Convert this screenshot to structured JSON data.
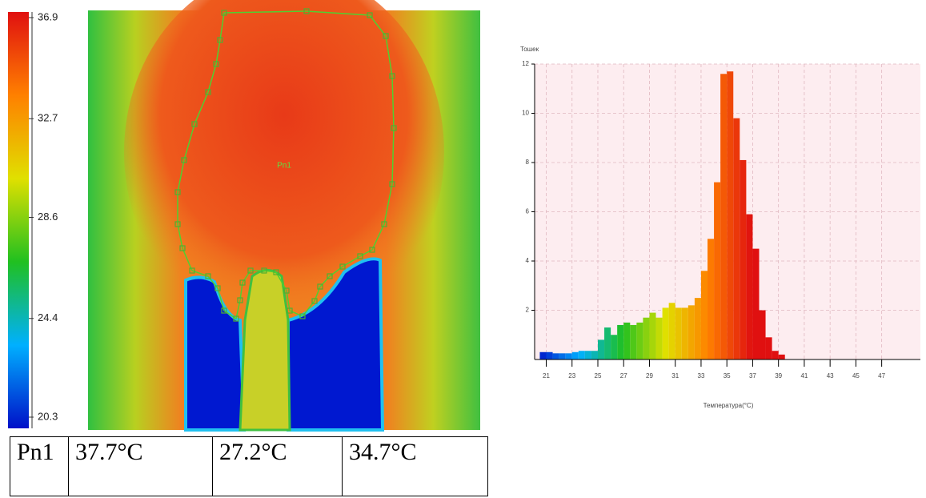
{
  "colorbar": {
    "lim": [
      20.3,
      36.9
    ],
    "ticks": [
      36.9,
      32.7,
      28.6,
      24.4,
      20.3
    ],
    "colormap": [
      "#0010c8",
      "#00b0ff",
      "#20c020",
      "#e0e000",
      "#ff8000",
      "#e01010"
    ]
  },
  "thermal_image": {
    "region_label": "Pn1"
  },
  "chart_data": {
    "type": "histogram",
    "ylabel": "Тошек",
    "xlabel": "Температура(°C)",
    "bins": [
      20.5,
      21,
      21.5,
      22,
      22.5,
      23,
      23.5,
      24,
      24.5,
      25,
      25.5,
      26,
      26.5,
      27,
      27.5,
      28,
      28.5,
      29,
      29.5,
      30,
      30.5,
      31,
      31.5,
      32,
      32.5,
      33,
      33.5,
      34,
      34.5,
      35,
      35.5,
      36,
      36.5,
      37,
      37.5,
      38,
      38.5,
      39,
      39.5
    ],
    "values": [
      0.3,
      0.3,
      0.25,
      0.25,
      0.25,
      0.3,
      0.35,
      0.35,
      0.35,
      0.8,
      1.3,
      1.0,
      1.4,
      1.5,
      1.4,
      1.5,
      1.7,
      1.9,
      1.7,
      2.1,
      2.3,
      2.1,
      2.1,
      2.2,
      2.5,
      3.6,
      4.9,
      7.2,
      11.6,
      11.7,
      9.8,
      8.1,
      5.9,
      4.5,
      2.0,
      0.9,
      0.35,
      0.2
    ],
    "xlim": [
      20.1,
      50
    ],
    "ylim": [
      0,
      12
    ],
    "xticks": [
      21,
      23,
      25,
      27,
      29,
      31,
      33,
      35,
      37,
      39,
      41,
      43,
      45,
      47
    ],
    "yticks": [
      2,
      4,
      6,
      8,
      10,
      12
    ],
    "grid": true,
    "background": "#fdedf0"
  },
  "table": {
    "rows": [
      [
        "Pn1",
        "37.7°C",
        "27.2°C",
        "34.7°C"
      ]
    ]
  }
}
